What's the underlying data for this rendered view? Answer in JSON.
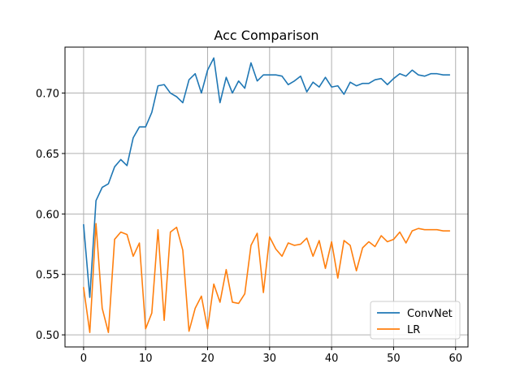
{
  "chart_data": {
    "type": "line",
    "title": "Acc Comparison",
    "xlabel": "",
    "ylabel": "",
    "xlim": [
      -3,
      62
    ],
    "ylim": [
      0.49,
      0.738
    ],
    "xticks": [
      0,
      10,
      20,
      30,
      40,
      50,
      60
    ],
    "yticks": [
      0.5,
      0.55,
      0.6,
      0.65,
      0.7
    ],
    "xtick_labels": [
      "0",
      "10",
      "20",
      "30",
      "40",
      "50",
      "60"
    ],
    "ytick_labels": [
      "0.50",
      "0.55",
      "0.60",
      "0.65",
      "0.70"
    ],
    "grid": true,
    "legend_position": "lower-right",
    "x": [
      0,
      1,
      2,
      3,
      4,
      5,
      6,
      7,
      8,
      9,
      10,
      11,
      12,
      13,
      14,
      15,
      16,
      17,
      18,
      19,
      20,
      21,
      22,
      23,
      24,
      25,
      26,
      27,
      28,
      29,
      30,
      31,
      32,
      33,
      34,
      35,
      36,
      37,
      38,
      39,
      40,
      41,
      42,
      43,
      44,
      45,
      46,
      47,
      48,
      49,
      50,
      51,
      52,
      53,
      54,
      55,
      56,
      57,
      58,
      59
    ],
    "series": [
      {
        "name": "ConvNet",
        "color": "#1f77b4",
        "values": [
          0.591,
          0.531,
          0.611,
          0.622,
          0.625,
          0.639,
          0.645,
          0.64,
          0.663,
          0.672,
          0.672,
          0.684,
          0.706,
          0.707,
          0.7,
          0.697,
          0.692,
          0.711,
          0.716,
          0.7,
          0.719,
          0.729,
          0.692,
          0.713,
          0.7,
          0.71,
          0.704,
          0.725,
          0.71,
          0.715,
          0.715,
          0.715,
          0.714,
          0.707,
          0.71,
          0.714,
          0.701,
          0.709,
          0.705,
          0.713,
          0.705,
          0.706,
          0.699,
          0.709,
          0.706,
          0.708,
          0.708,
          0.711,
          0.712,
          0.707,
          0.712,
          0.716,
          0.714,
          0.719,
          0.715,
          0.714,
          0.716,
          0.716,
          0.715,
          0.715
        ]
      },
      {
        "name": "LR",
        "color": "#ff7f0e",
        "values": [
          0.539,
          0.502,
          0.592,
          0.522,
          0.502,
          0.579,
          0.585,
          0.583,
          0.565,
          0.576,
          0.505,
          0.518,
          0.587,
          0.512,
          0.585,
          0.589,
          0.57,
          0.503,
          0.522,
          0.532,
          0.505,
          0.542,
          0.527,
          0.554,
          0.527,
          0.526,
          0.534,
          0.574,
          0.584,
          0.535,
          0.581,
          0.571,
          0.565,
          0.576,
          0.574,
          0.575,
          0.58,
          0.565,
          0.578,
          0.555,
          0.577,
          0.547,
          0.578,
          0.574,
          0.553,
          0.572,
          0.577,
          0.573,
          0.582,
          0.577,
          0.579,
          0.585,
          0.576,
          0.586,
          0.588,
          0.587,
          0.587,
          0.587,
          0.586,
          0.586
        ]
      }
    ]
  },
  "style": {
    "grid_color": "#b0b0b0",
    "axis_color": "#000000",
    "background": "#ffffff"
  }
}
